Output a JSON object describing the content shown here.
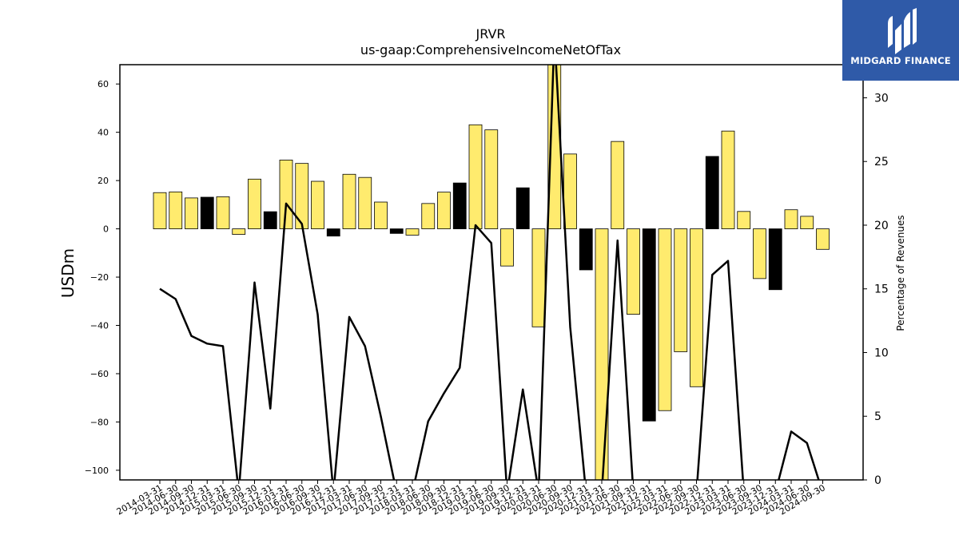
{
  "chart_data": {
    "type": "bar+line",
    "title": "JRVR",
    "subtitle": "us-gaap:ComprehensiveIncomeNetOfTax",
    "ylabel": "USDm",
    "y2label": "Percentage of Revenues",
    "ylim": [
      -104,
      68
    ],
    "y2lim": [
      0,
      32.6
    ],
    "yticks": [
      60,
      40,
      20,
      0,
      -20,
      -40,
      -60,
      -80,
      -100
    ],
    "y2ticks": [
      0,
      5,
      10,
      15,
      20,
      25,
      30
    ],
    "categories": [
      "2014-03-31",
      "2014-06-30",
      "2014-09-30",
      "2014-12-31",
      "2015-03-31",
      "2015-06-30",
      "2015-09-30",
      "2015-12-31",
      "2016-03-31",
      "2016-06-30",
      "2016-09-30",
      "2016-12-31",
      "2017-03-31",
      "2017-06-30",
      "2017-09-30",
      "2017-12-31",
      "2018-03-31",
      "2018-06-30",
      "2018-09-30",
      "2018-12-31",
      "2019-03-31",
      "2019-06-30",
      "2019-09-30",
      "2019-12-31",
      "2020-03-31",
      "2020-06-30",
      "2020-09-30",
      "2020-12-31",
      "2021-03-31",
      "2021-06-30",
      "2021-09-30",
      "2021-12-31",
      "2022-03-31",
      "2022-06-30",
      "2022-09-30",
      "2022-12-31",
      "2023-03-31",
      "2023-06-30",
      "2023-09-30",
      "2023-12-31",
      "2024-03-31",
      "2024-06-30",
      "2024-09-30"
    ],
    "values": [
      15.0,
      15.3,
      12.8,
      13.1,
      13.3,
      -2.3,
      20.6,
      7.1,
      28.5,
      27.1,
      19.7,
      -3.0,
      22.6,
      21.3,
      11.1,
      -1.9,
      -2.6,
      10.5,
      15.2,
      19.0,
      43.1,
      41.0,
      -15.4,
      17.0,
      -40.6,
      68.0,
      31.0,
      -17.0,
      -104.0,
      36.2,
      -35.4,
      -79.6,
      -75.3,
      -50.9,
      -65.4,
      30.0,
      40.5,
      7.2,
      -20.6,
      -25.2,
      7.9,
      5.2,
      -8.5
    ],
    "bar_colors": [
      "#FFEB6E",
      "#FFEB6E",
      "#FFEB6E",
      "#000000",
      "#FFEB6E",
      "#FFEB6E",
      "#FFEB6E",
      "#000000",
      "#FFEB6E",
      "#FFEB6E",
      "#FFEB6E",
      "#000000",
      "#FFEB6E",
      "#FFEB6E",
      "#FFEB6E",
      "#000000",
      "#FFEB6E",
      "#FFEB6E",
      "#FFEB6E",
      "#000000",
      "#FFEB6E",
      "#FFEB6E",
      "#FFEB6E",
      "#000000",
      "#FFEB6E",
      "#FFEB6E",
      "#FFEB6E",
      "#000000",
      "#FFEB6E",
      "#FFEB6E",
      "#FFEB6E",
      "#000000",
      "#FFEB6E",
      "#FFEB6E",
      "#FFEB6E",
      "#000000",
      "#FFEB6E",
      "#FFEB6E",
      "#FFEB6E",
      "#000000",
      "#FFEB6E",
      "#FFEB6E",
      "#FFEB6E"
    ],
    "pct_of_revenues": [
      15.0,
      14.2,
      11.3,
      10.7,
      10.5,
      -1.0,
      15.5,
      5.6,
      21.7,
      20.1,
      13.0,
      -1.0,
      12.8,
      10.5,
      5.0,
      -1.0,
      -1.0,
      4.6,
      6.8,
      8.8,
      20.0,
      18.6,
      -1.0,
      7.1,
      -1.0,
      35.0,
      12.0,
      -1.0,
      -1.0,
      18.8,
      -1.0,
      -1.0,
      -1.0,
      -1.0,
      -1.0,
      16.1,
      17.2,
      -1.0,
      -1.0,
      -1.0,
      3.8,
      2.9,
      -1.0
    ]
  },
  "logo": {
    "text": "MIDGARD FINANCE",
    "background": "#2f5aa8"
  }
}
